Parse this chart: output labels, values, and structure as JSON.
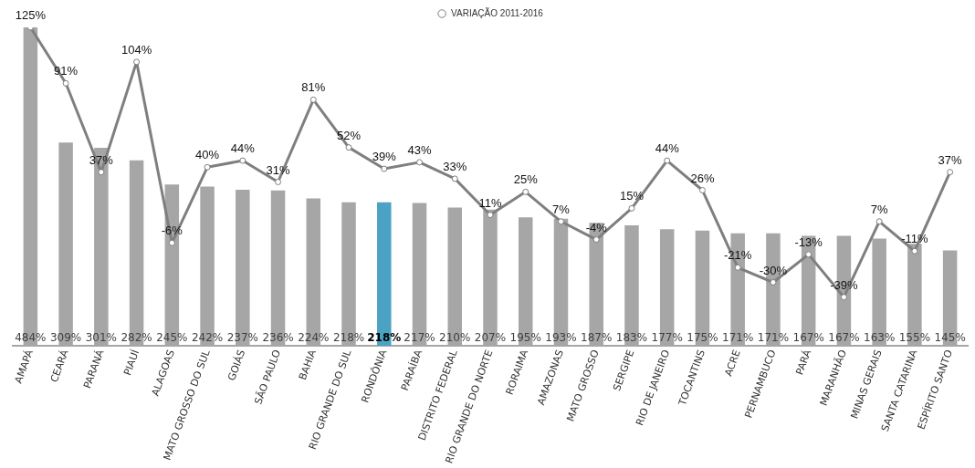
{
  "chart_data": {
    "type": "bar",
    "categories": [
      "AMAPÁ",
      "CEARÁ",
      "PARANÁ",
      "PIAUÍ",
      "ALAGOAS",
      "MATO GROSSO DO SUL",
      "GOIÁS",
      "SÃO PAULO",
      "BAHIA",
      "RIO GRANDE DO SUL",
      "RONDÔNIA",
      "PARAÍBA",
      "DISTRITO FEDERAL",
      "RIO GRANDE DO NORTE",
      "RORAIMA",
      "AMAZONAS",
      "MATO GROSSO",
      "SERGIPE",
      "RIO DE JANEIRO",
      "TOCANTINS",
      "ACRE",
      "PERNAMBUCO",
      "PARÁ",
      "MARANHÃO",
      "MINAS GERAIS",
      "SANTA CATARINA",
      "ESPÍRITO SANTO"
    ],
    "series": [
      {
        "color": "#a6a6a6",
        "colors": [
          "#a6a6a6",
          "#a6a6a6",
          "#a6a6a6",
          "#a6a6a6",
          "#a6a6a6",
          "#a6a6a6",
          "#a6a6a6",
          "#a6a6a6",
          "#a6a6a6",
          "#a6a6a6",
          "#4ba3c3",
          "#a6a6a6",
          "#a6a6a6",
          "#a6a6a6",
          "#a6a6a6",
          "#a6a6a6",
          "#a6a6a6",
          "#a6a6a6",
          "#a6a6a6",
          "#a6a6a6",
          "#a6a6a6",
          "#a6a6a6",
          "#a6a6a6",
          "#a6a6a6",
          "#a6a6a6",
          "#a6a6a6",
          "#a6a6a6"
        ],
        "values": [
          484,
          309,
          301,
          282,
          245,
          242,
          237,
          236,
          224,
          218,
          218,
          217,
          210,
          207,
          195,
          193,
          187,
          183,
          177,
          175,
          171,
          171,
          167,
          167,
          163,
          155,
          145
        ],
        "value_labels": [
          "484%",
          "309%",
          "301%",
          "282%",
          "245%",
          "242%",
          "237%",
          "236%",
          "224%",
          "218%",
          "218%",
          "217%",
          "210%",
          "207%",
          "195%",
          "193%",
          "187%",
          "183%",
          "177%",
          "175%",
          "171%",
          "171%",
          "167%",
          "167%",
          "163%",
          "155%",
          "145%"
        ]
      },
      {
        "type": "line",
        "name": "VARIAÇÃO 2011-2016",
        "color": "#7f7f7f",
        "axis": "y2",
        "values": [
          125,
          91,
          37,
          104,
          -6,
          40,
          44,
          31,
          81,
          52,
          39,
          43,
          33,
          11,
          25,
          7,
          -4,
          15,
          44,
          26,
          -21,
          -30,
          -13,
          -39,
          7,
          -11,
          37
        ],
        "value_labels": [
          "125%",
          "91%",
          "37%",
          "104%",
          "-6%",
          "40%",
          "44%",
          "31%",
          "81%",
          "52%",
          "39%",
          "43%",
          "33%",
          "11%",
          "25%",
          "7%",
          "-4%",
          "15%",
          "44%",
          "26%",
          "-21%",
          "-30%",
          "-13%",
          "-39%",
          "7%",
          "-11%",
          "37%"
        ]
      }
    ],
    "tick_labels": "x",
    "legend": "top",
    "marker": "circle",
    "line_style": "solid"
  }
}
